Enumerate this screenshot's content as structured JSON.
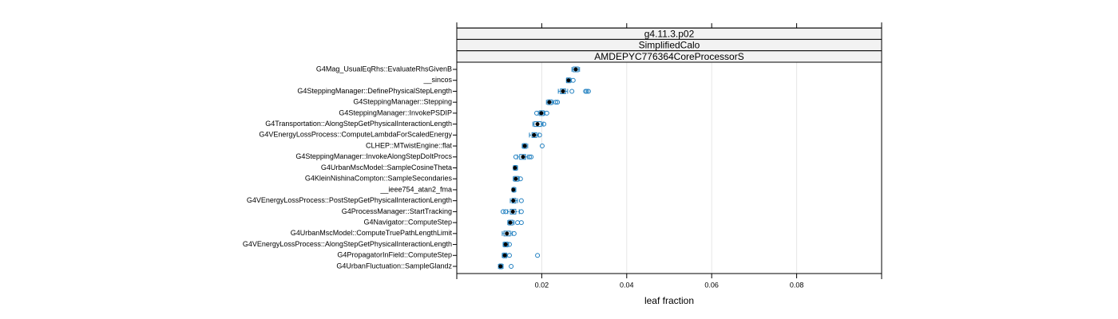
{
  "chart_data": {
    "type": "boxplot",
    "strips": [
      "g4.11.3.p02",
      "SimplifiedCalo",
      "AMDEPYC776364CoreProcessorS"
    ],
    "xlabel": "leaf fraction",
    "xlim": [
      0,
      0.1
    ],
    "xticks": [
      0.02,
      0.04,
      0.06,
      0.08
    ],
    "grid": true,
    "color": "#1f7fc0",
    "median_color": "#000000",
    "categories": [
      "G4Mag_UsualEqRhs::EvaluateRhsGivenB",
      "__sincos",
      "G4SteppingManager::DefinePhysicalStepLength",
      "G4SteppingManager::Stepping",
      "G4SteppingManager::InvokePSDIP",
      "G4Transportation::AlongStepGetPhysicalInteractionLength",
      "G4VEnergyLossProcess::ComputeLambdaForScaledEnergy",
      "CLHEP::MTwistEngine::flat",
      "G4SteppingManager::InvokeAlongStepDoItProcs",
      "G4UrbanMscModel::SampleCosineTheta",
      "G4KleinNishinaCompton::SampleSecondaries",
      "__ieee754_atan2_fma",
      "G4VEnergyLossProcess::PostStepGetPhysicalInteractionLength",
      "G4ProcessManager::StartTracking",
      "G4Navigator::ComputeStep",
      "G4UrbanMscModel::ComputeTruePathLengthLimit",
      "G4VEnergyLossProcess::AlongStepGetPhysicalInteractionLength",
      "G4PropagatorInField::ComputeStep",
      "G4UrbanFluctuation::SampleGlandz"
    ],
    "boxes": [
      {
        "median": 0.028,
        "q1": 0.0274,
        "q3": 0.0286,
        "whisker_low": 0.0271,
        "whisker_high": 0.0289,
        "outliers": []
      },
      {
        "median": 0.0263,
        "q1": 0.0259,
        "q3": 0.0267,
        "whisker_low": 0.0258,
        "whisker_high": 0.0269,
        "outliers": [
          0.0274
        ]
      },
      {
        "median": 0.025,
        "q1": 0.0244,
        "q3": 0.0256,
        "whisker_low": 0.0239,
        "whisker_high": 0.0261,
        "outliers": [
          0.0271,
          0.0303,
          0.0306,
          0.031
        ]
      },
      {
        "median": 0.0218,
        "q1": 0.0214,
        "q3": 0.0224,
        "whisker_low": 0.0211,
        "whisker_high": 0.0227,
        "outliers": [
          0.0233,
          0.0237
        ]
      },
      {
        "median": 0.0199,
        "q1": 0.0195,
        "q3": 0.0205,
        "whisker_low": 0.0192,
        "whisker_high": 0.0207,
        "outliers": [
          0.0188,
          0.0212
        ]
      },
      {
        "median": 0.019,
        "q1": 0.0182,
        "q3": 0.0199,
        "whisker_low": 0.0179,
        "whisker_high": 0.0203,
        "outliers": [
          0.0205
        ]
      },
      {
        "median": 0.0182,
        "q1": 0.0177,
        "q3": 0.0188,
        "whisker_low": 0.0171,
        "whisker_high": 0.0192,
        "outliers": [
          0.0195
        ]
      },
      {
        "median": 0.016,
        "q1": 0.0156,
        "q3": 0.0164,
        "whisker_low": 0.0154,
        "whisker_high": 0.0167,
        "outliers": [
          0.0201
        ]
      },
      {
        "median": 0.0156,
        "q1": 0.0148,
        "q3": 0.0162,
        "whisker_low": 0.0143,
        "whisker_high": 0.0167,
        "outliers": [
          0.0139,
          0.0171,
          0.0175
        ]
      },
      {
        "median": 0.0137,
        "q1": 0.0135,
        "q3": 0.0141,
        "whisker_low": 0.0133,
        "whisker_high": 0.0143,
        "outliers": []
      },
      {
        "median": 0.0139,
        "q1": 0.0135,
        "q3": 0.0145,
        "whisker_low": 0.0133,
        "whisker_high": 0.0147,
        "outliers": [
          0.015
        ]
      },
      {
        "median": 0.0133,
        "q1": 0.0132,
        "q3": 0.0137,
        "whisker_low": 0.013,
        "whisker_high": 0.0139,
        "outliers": []
      },
      {
        "median": 0.0133,
        "q1": 0.013,
        "q3": 0.0139,
        "whisker_low": 0.0126,
        "whisker_high": 0.0143,
        "outliers": [
          0.0152
        ]
      },
      {
        "median": 0.0132,
        "q1": 0.0126,
        "q3": 0.0139,
        "whisker_low": 0.012,
        "whisker_high": 0.0147,
        "outliers": [
          0.0109,
          0.0115,
          0.0152
        ]
      },
      {
        "median": 0.0126,
        "q1": 0.0122,
        "q3": 0.0132,
        "whisker_low": 0.012,
        "whisker_high": 0.0135,
        "outliers": [
          0.0143,
          0.0152
        ]
      },
      {
        "median": 0.0118,
        "q1": 0.0111,
        "q3": 0.0126,
        "whisker_low": 0.0107,
        "whisker_high": 0.013,
        "outliers": [
          0.0135
        ]
      },
      {
        "median": 0.0115,
        "q1": 0.0111,
        "q3": 0.012,
        "whisker_low": 0.0109,
        "whisker_high": 0.0122,
        "outliers": [
          0.0124
        ]
      },
      {
        "median": 0.0113,
        "q1": 0.0109,
        "q3": 0.0117,
        "whisker_low": 0.0107,
        "whisker_high": 0.0118,
        "outliers": [
          0.0124,
          0.019
        ]
      },
      {
        "median": 0.0103,
        "q1": 0.01,
        "q3": 0.0107,
        "whisker_low": 0.0098,
        "whisker_high": 0.0109,
        "outliers": [
          0.0128
        ]
      }
    ]
  }
}
